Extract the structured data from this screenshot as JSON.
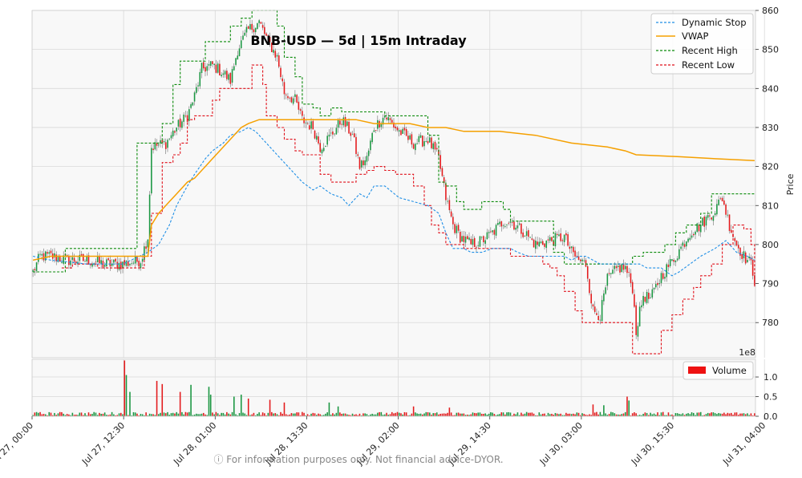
{
  "chart_data": {
    "type": "candlestick",
    "title": "BNB-USD — 5d | 15m Intraday",
    "ylabel": "Price",
    "ylim": [
      771,
      860
    ],
    "yticks": [
      780,
      790,
      800,
      810,
      820,
      830,
      840,
      850,
      860
    ],
    "volume_ylim": [
      0,
      1.45
    ],
    "volume_yticks": [
      0.0,
      0.5,
      1.0
    ],
    "volume_yticklabels": [
      "0.0",
      "0.5",
      "1.0"
    ],
    "volume_exponent": "1e8",
    "volume_legend": "Volume",
    "x_categories": [
      "Jul 27, 00:00",
      "Jul 27, 12:30",
      "Jul 28, 01:00",
      "Jul 28, 13:30",
      "Jul 29, 02:00",
      "Jul 29, 14:30",
      "Jul 30, 03:00",
      "Jul 30, 15:30",
      "Jul 31, 04:00"
    ],
    "grid": true,
    "legend_position": "top-right",
    "legend": [
      "Dynamic Stop",
      "VWAP",
      "Recent High",
      "Recent Low"
    ],
    "colors": {
      "up": "#1a9641",
      "down": "#e31a1c",
      "dynamic_stop": "#1f8fe6",
      "vwap": "#f5a000",
      "recent_high": "#0a8a0a",
      "recent_low": "#e0101a",
      "volume_legend": "#ee1111"
    },
    "price_path": [
      [
        0,
        793
      ],
      [
        4,
        797
      ],
      [
        10,
        797
      ],
      [
        20,
        796
      ],
      [
        30,
        796
      ],
      [
        40,
        795
      ],
      [
        50,
        795
      ],
      [
        60,
        796
      ],
      [
        64,
        802
      ],
      [
        66,
        825
      ],
      [
        74,
        826
      ],
      [
        80,
        830
      ],
      [
        86,
        833
      ],
      [
        90,
        838
      ],
      [
        94,
        845
      ],
      [
        100,
        846
      ],
      [
        106,
        844
      ],
      [
        110,
        842
      ],
      [
        114,
        850
      ],
      [
        120,
        855
      ],
      [
        126,
        857
      ],
      [
        130,
        853
      ],
      [
        136,
        848
      ],
      [
        140,
        839
      ],
      [
        146,
        837
      ],
      [
        150,
        832
      ],
      [
        156,
        830
      ],
      [
        160,
        825
      ],
      [
        166,
        828
      ],
      [
        172,
        832
      ],
      [
        178,
        828
      ],
      [
        182,
        820
      ],
      [
        186,
        822
      ],
      [
        190,
        830
      ],
      [
        196,
        833
      ],
      [
        204,
        829
      ],
      [
        212,
        826
      ],
      [
        220,
        827
      ],
      [
        226,
        822
      ],
      [
        230,
        812
      ],
      [
        234,
        805
      ],
      [
        238,
        802
      ],
      [
        244,
        800
      ],
      [
        250,
        801
      ],
      [
        256,
        803
      ],
      [
        262,
        806
      ],
      [
        266,
        806
      ],
      [
        274,
        803
      ],
      [
        280,
        800
      ],
      [
        288,
        801
      ],
      [
        296,
        802
      ],
      [
        300,
        798
      ],
      [
        304,
        796
      ],
      [
        308,
        795
      ],
      [
        312,
        783
      ],
      [
        316,
        782
      ],
      [
        320,
        791
      ],
      [
        326,
        794
      ],
      [
        330,
        794
      ],
      [
        334,
        789
      ],
      [
        336,
        778
      ],
      [
        340,
        787
      ],
      [
        344,
        786
      ],
      [
        350,
        792
      ],
      [
        358,
        797
      ],
      [
        366,
        803
      ],
      [
        372,
        805
      ],
      [
        380,
        809
      ],
      [
        384,
        812
      ],
      [
        388,
        805
      ],
      [
        392,
        800
      ],
      [
        396,
        797
      ],
      [
        400,
        795
      ],
      [
        402,
        791
      ]
    ],
    "volume_spikes": [
      [
        51,
        1.42
      ],
      [
        52,
        1.05
      ],
      [
        54,
        0.62
      ],
      [
        69,
        0.9
      ],
      [
        72,
        0.82
      ],
      [
        82,
        0.62
      ],
      [
        88,
        0.8
      ],
      [
        98,
        0.75
      ],
      [
        99,
        0.55
      ],
      [
        112,
        0.5
      ],
      [
        116,
        0.55
      ],
      [
        120,
        0.45
      ],
      [
        132,
        0.42
      ],
      [
        140,
        0.35
      ],
      [
        165,
        0.35
      ],
      [
        170,
        0.25
      ],
      [
        212,
        0.25
      ],
      [
        232,
        0.22
      ],
      [
        312,
        0.3
      ],
      [
        318,
        0.28
      ],
      [
        331,
        0.5
      ],
      [
        332,
        0.4
      ]
    ],
    "vwap": [
      [
        0,
        796
      ],
      [
        10,
        797
      ],
      [
        30,
        797
      ],
      [
        50,
        797
      ],
      [
        64,
        797
      ],
      [
        66,
        805
      ],
      [
        70,
        808
      ],
      [
        76,
        811
      ],
      [
        80,
        813
      ],
      [
        86,
        816
      ],
      [
        90,
        817
      ],
      [
        96,
        820
      ],
      [
        100,
        822
      ],
      [
        106,
        825
      ],
      [
        110,
        827
      ],
      [
        116,
        830
      ],
      [
        120,
        831
      ],
      [
        126,
        832
      ],
      [
        130,
        832
      ],
      [
        140,
        832
      ],
      [
        150,
        832
      ],
      [
        160,
        832
      ],
      [
        170,
        832
      ],
      [
        180,
        832
      ],
      [
        190,
        831
      ],
      [
        200,
        831
      ],
      [
        210,
        831
      ],
      [
        220,
        830
      ],
      [
        230,
        830
      ],
      [
        240,
        829
      ],
      [
        260,
        829
      ],
      [
        280,
        828
      ],
      [
        300,
        826
      ],
      [
        320,
        825
      ],
      [
        330,
        824
      ],
      [
        336,
        823
      ],
      [
        360,
        822.5
      ],
      [
        380,
        822
      ],
      [
        402,
        821.5
      ]
    ],
    "dynamic_stop": [
      [
        0,
        797
      ],
      [
        10,
        796
      ],
      [
        30,
        795
      ],
      [
        50,
        795
      ],
      [
        64,
        798
      ],
      [
        70,
        800
      ],
      [
        76,
        805
      ],
      [
        80,
        810
      ],
      [
        86,
        815
      ],
      [
        90,
        818
      ],
      [
        96,
        822
      ],
      [
        100,
        824
      ],
      [
        106,
        826
      ],
      [
        110,
        828
      ],
      [
        116,
        829
      ],
      [
        120,
        830
      ],
      [
        124,
        829
      ],
      [
        130,
        826
      ],
      [
        136,
        823
      ],
      [
        140,
        821
      ],
      [
        146,
        818
      ],
      [
        150,
        816
      ],
      [
        156,
        814
      ],
      [
        160,
        815
      ],
      [
        166,
        813
      ],
      [
        172,
        812
      ],
      [
        176,
        810
      ],
      [
        182,
        813
      ],
      [
        186,
        812
      ],
      [
        190,
        815
      ],
      [
        196,
        815
      ],
      [
        204,
        812
      ],
      [
        212,
        811
      ],
      [
        220,
        810
      ],
      [
        226,
        808
      ],
      [
        230,
        803
      ],
      [
        234,
        799
      ],
      [
        240,
        799
      ],
      [
        244,
        798
      ],
      [
        250,
        798
      ],
      [
        256,
        799
      ],
      [
        262,
        799
      ],
      [
        266,
        799
      ],
      [
        270,
        798
      ],
      [
        276,
        797
      ],
      [
        282,
        797
      ],
      [
        288,
        797
      ],
      [
        296,
        797
      ],
      [
        300,
        796
      ],
      [
        304,
        797
      ],
      [
        308,
        797
      ],
      [
        312,
        796
      ],
      [
        316,
        795
      ],
      [
        320,
        795
      ],
      [
        326,
        795
      ],
      [
        330,
        795
      ],
      [
        334,
        795
      ],
      [
        338,
        795
      ],
      [
        342,
        794
      ],
      [
        350,
        794
      ],
      [
        356,
        792
      ],
      [
        360,
        793
      ],
      [
        366,
        795
      ],
      [
        372,
        797
      ],
      [
        380,
        799
      ],
      [
        386,
        801
      ],
      [
        392,
        798
      ],
      [
        398,
        797
      ],
      [
        402,
        796
      ]
    ],
    "recent_high": [
      [
        0,
        793
      ],
      [
        18,
        799
      ],
      [
        50,
        799
      ],
      [
        56,
        799
      ],
      [
        58,
        826
      ],
      [
        66,
        826
      ],
      [
        72,
        831
      ],
      [
        78,
        841
      ],
      [
        82,
        847
      ],
      [
        90,
        847
      ],
      [
        96,
        852
      ],
      [
        104,
        852
      ],
      [
        110,
        856
      ],
      [
        116,
        858
      ],
      [
        122,
        860
      ],
      [
        130,
        860
      ],
      [
        136,
        856
      ],
      [
        140,
        848
      ],
      [
        146,
        843
      ],
      [
        150,
        836
      ],
      [
        156,
        835
      ],
      [
        160,
        833
      ],
      [
        166,
        835
      ],
      [
        172,
        834
      ],
      [
        178,
        834
      ],
      [
        182,
        834
      ],
      [
        190,
        834
      ],
      [
        196,
        833
      ],
      [
        204,
        833
      ],
      [
        212,
        833
      ],
      [
        220,
        828
      ],
      [
        226,
        816
      ],
      [
        230,
        815
      ],
      [
        236,
        811
      ],
      [
        240,
        809
      ],
      [
        250,
        811
      ],
      [
        256,
        811
      ],
      [
        262,
        809
      ],
      [
        266,
        806
      ],
      [
        276,
        806
      ],
      [
        282,
        806
      ],
      [
        290,
        798
      ],
      [
        296,
        795
      ],
      [
        300,
        795
      ],
      [
        306,
        795
      ],
      [
        312,
        795
      ],
      [
        318,
        795
      ],
      [
        326,
        795
      ],
      [
        330,
        795
      ],
      [
        334,
        797
      ],
      [
        340,
        798
      ],
      [
        346,
        798
      ],
      [
        352,
        800
      ],
      [
        358,
        803
      ],
      [
        364,
        805
      ],
      [
        372,
        808
      ],
      [
        378,
        813
      ],
      [
        386,
        813
      ],
      [
        394,
        813
      ],
      [
        402,
        813
      ]
    ],
    "recent_low": [
      [
        16,
        794
      ],
      [
        22,
        795
      ],
      [
        30,
        795
      ],
      [
        36,
        794
      ],
      [
        44,
        794
      ],
      [
        50,
        794
      ],
      [
        56,
        794
      ],
      [
        62,
        797
      ],
      [
        66,
        808
      ],
      [
        72,
        821
      ],
      [
        78,
        823
      ],
      [
        82,
        826
      ],
      [
        86,
        832
      ],
      [
        90,
        833
      ],
      [
        94,
        833
      ],
      [
        100,
        837
      ],
      [
        104,
        840
      ],
      [
        110,
        840
      ],
      [
        116,
        840
      ],
      [
        122,
        846
      ],
      [
        128,
        841
      ],
      [
        130,
        833
      ],
      [
        136,
        830
      ],
      [
        140,
        827
      ],
      [
        146,
        824
      ],
      [
        150,
        823
      ],
      [
        156,
        823
      ],
      [
        160,
        818
      ],
      [
        166,
        816
      ],
      [
        172,
        816
      ],
      [
        176,
        816
      ],
      [
        180,
        818
      ],
      [
        186,
        819
      ],
      [
        190,
        820
      ],
      [
        196,
        819
      ],
      [
        202,
        818
      ],
      [
        208,
        818
      ],
      [
        212,
        815
      ],
      [
        218,
        810
      ],
      [
        222,
        805
      ],
      [
        226,
        803
      ],
      [
        230,
        800
      ],
      [
        236,
        800
      ],
      [
        240,
        799
      ],
      [
        246,
        799
      ],
      [
        252,
        799
      ],
      [
        258,
        799
      ],
      [
        266,
        797
      ],
      [
        272,
        797
      ],
      [
        278,
        797
      ],
      [
        284,
        795
      ],
      [
        288,
        794
      ],
      [
        292,
        792
      ],
      [
        296,
        788
      ],
      [
        302,
        783
      ],
      [
        306,
        780
      ],
      [
        310,
        780
      ],
      [
        316,
        780
      ],
      [
        320,
        780
      ],
      [
        326,
        780
      ],
      [
        330,
        780
      ],
      [
        334,
        772
      ],
      [
        340,
        772
      ],
      [
        346,
        772
      ],
      [
        350,
        778
      ],
      [
        356,
        782
      ],
      [
        362,
        786
      ],
      [
        368,
        789
      ],
      [
        372,
        792
      ],
      [
        378,
        795
      ],
      [
        384,
        800
      ],
      [
        390,
        805
      ],
      [
        396,
        804
      ],
      [
        400,
        800
      ],
      [
        402,
        789
      ]
    ]
  },
  "footer": "ⓘ For information purposes only. Not financial advice-DYOR."
}
